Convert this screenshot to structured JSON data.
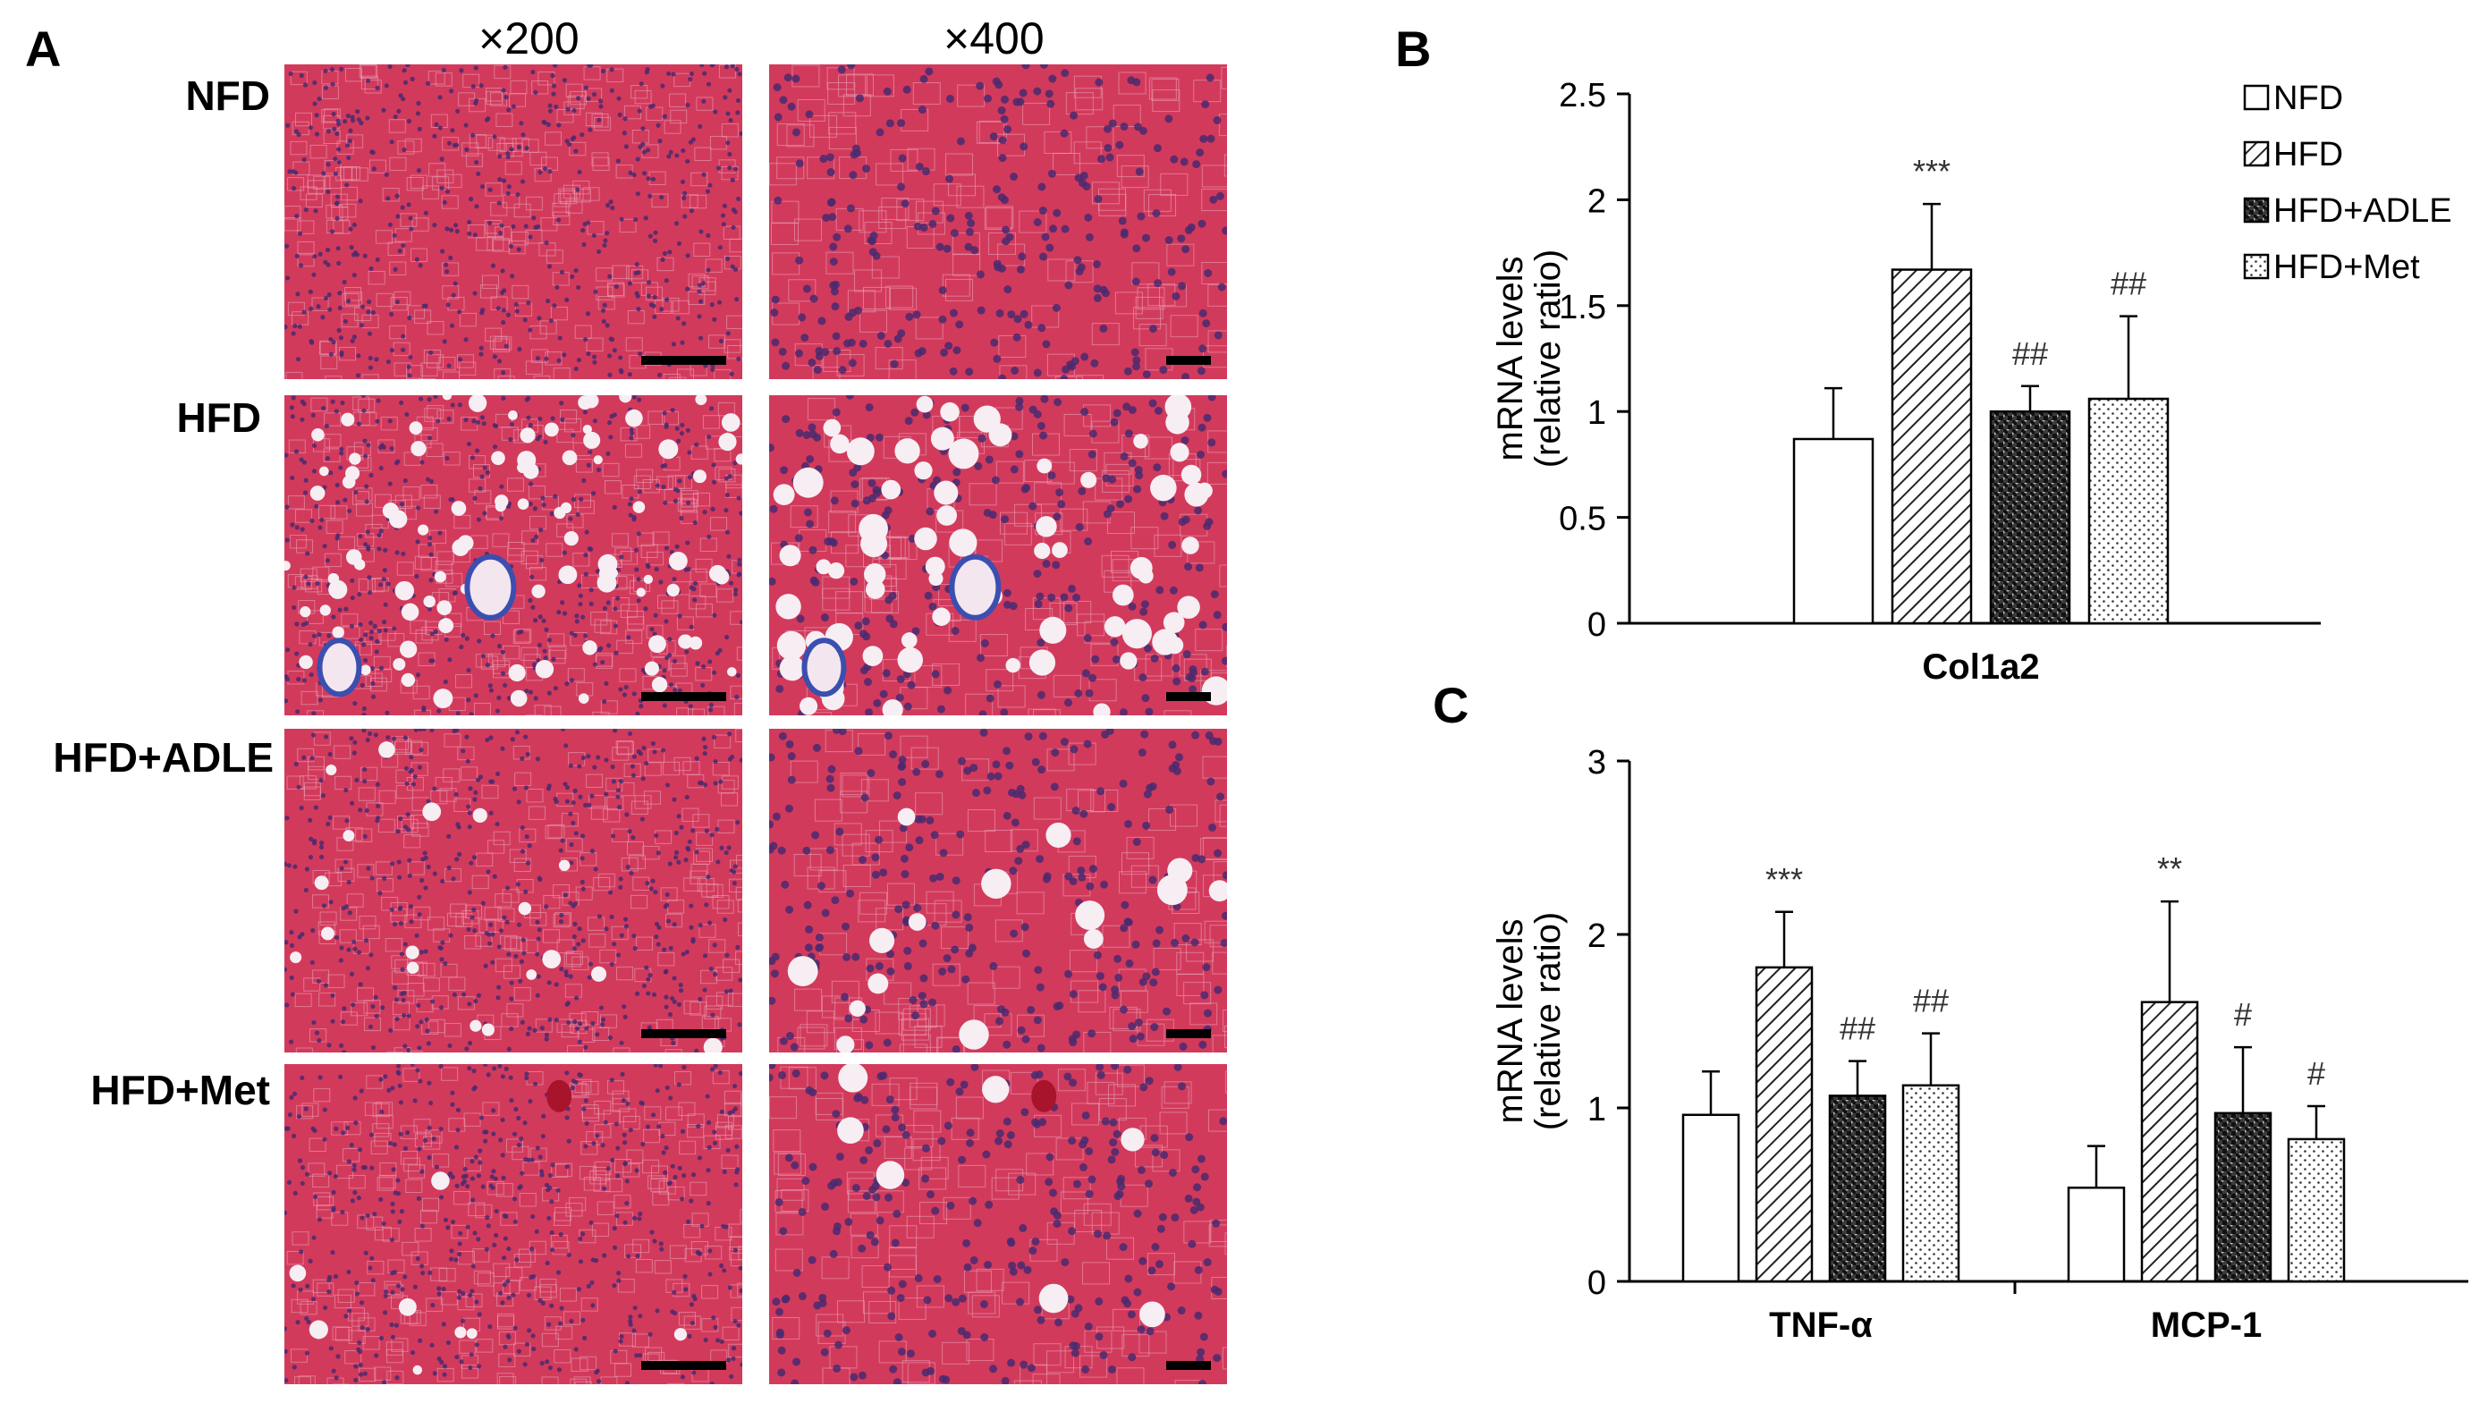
{
  "panel_a": {
    "letter": "A",
    "magnifications": [
      "×200",
      "×400"
    ],
    "rows": [
      "NFD",
      "HFD",
      "HFD+ADLE",
      "HFD+Met"
    ],
    "stain_colors": {
      "tissue": "#d23a5c",
      "nuclei": "#4a2a6e",
      "fibrosis": "#3a4fb0",
      "vessel": "#f3e6ee"
    }
  },
  "legend": [
    "NFD",
    "HFD",
    "HFD+ADLE",
    "HFD+Met"
  ],
  "chart_data": [
    {
      "letter": "B",
      "type": "bar",
      "categories": [
        "Col1a2"
      ],
      "series": [
        {
          "name": "NFD",
          "values": [
            0.87
          ],
          "errors": [
            0.24
          ],
          "annotations": [
            ""
          ]
        },
        {
          "name": "HFD",
          "values": [
            1.67
          ],
          "errors": [
            0.31
          ],
          "annotations": [
            "***"
          ]
        },
        {
          "name": "HFD+ADLE",
          "values": [
            1.0
          ],
          "errors": [
            0.12
          ],
          "annotations": [
            "##"
          ]
        },
        {
          "name": "HFD+Met",
          "values": [
            1.06
          ],
          "errors": [
            0.39
          ],
          "annotations": [
            "##"
          ]
        }
      ],
      "ylabel": [
        "mRNA levels",
        "(relative ratio)"
      ],
      "ylim": [
        0,
        2.5
      ],
      "yticks": [
        "0",
        "0.5",
        "1",
        "1.5",
        "2",
        "2.5"
      ],
      "legend_position": "top-right"
    },
    {
      "letter": "C",
      "type": "bar",
      "categories": [
        "TNF-α",
        "MCP-1"
      ],
      "series": [
        {
          "name": "NFD",
          "values": [
            0.96,
            0.54
          ],
          "errors": [
            0.25,
            0.24
          ],
          "annotations": [
            "",
            ""
          ]
        },
        {
          "name": "HFD",
          "values": [
            1.81,
            1.61
          ],
          "errors": [
            0.32,
            0.58
          ],
          "annotations": [
            "***",
            "**"
          ]
        },
        {
          "name": "HFD+ADLE",
          "values": [
            1.07,
            0.97
          ],
          "errors": [
            0.2,
            0.38
          ],
          "annotations": [
            "##",
            "#"
          ]
        },
        {
          "name": "HFD+Met",
          "values": [
            1.13,
            0.82
          ],
          "errors": [
            0.3,
            0.19
          ],
          "annotations": [
            "##",
            "#"
          ]
        }
      ],
      "ylabel": [
        "mRNA levels",
        "(relative ratio)"
      ],
      "ylim": [
        0,
        3
      ],
      "yticks": [
        "0",
        "1",
        "2",
        "3"
      ]
    }
  ]
}
